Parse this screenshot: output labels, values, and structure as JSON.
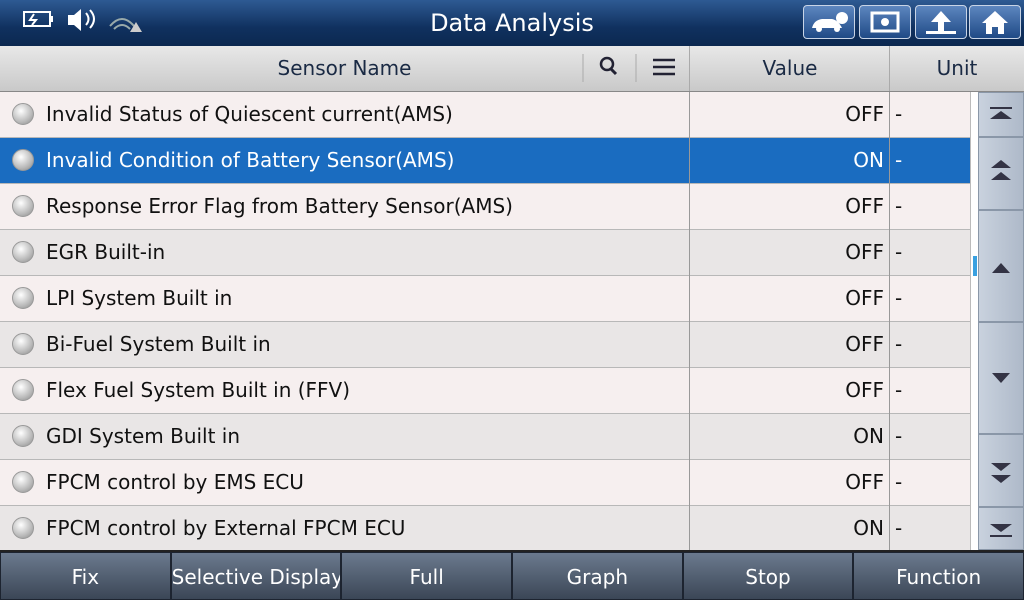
{
  "header": {
    "title": "Data Analysis"
  },
  "table": {
    "columns": [
      "Sensor Name",
      "Value",
      "Unit"
    ],
    "selected_row": 1,
    "rows": [
      [
        "Invalid Status of Quiescent current(AMS)",
        "OFF",
        "-"
      ],
      [
        "Invalid Condition of Battery Sensor(AMS)",
        "ON",
        "-"
      ],
      [
        "Response Error Flag from Battery Sensor(AMS)",
        "OFF",
        "-"
      ],
      [
        "EGR Built-in",
        "OFF",
        "-"
      ],
      [
        "LPI System Built in",
        "OFF",
        "-"
      ],
      [
        "Bi-Fuel System Built in",
        "OFF",
        "-"
      ],
      [
        "Flex Fuel System Built in (FFV)",
        "OFF",
        "-"
      ],
      [
        "GDI System Built in",
        "ON",
        "-"
      ],
      [
        "FPCM control by EMS ECU",
        "OFF",
        "-"
      ],
      [
        "FPCM control by External FPCM ECU",
        "ON",
        "-"
      ]
    ]
  },
  "toolbar": {
    "buttons": [
      "Fix",
      "Selective Display",
      "Full",
      "Graph",
      "Stop",
      "Function"
    ]
  }
}
